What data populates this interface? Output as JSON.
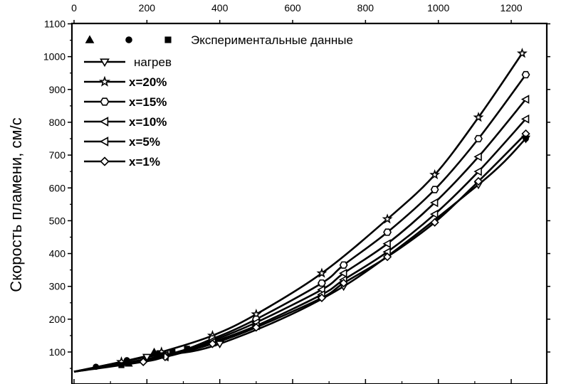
{
  "chart_data": {
    "type": "line",
    "title": "",
    "xlabel": "",
    "ylabel": "Скорость пламени, см/с",
    "xlim": [
      0,
      1300
    ],
    "ylim": [
      30,
      1100
    ],
    "x_ticks": [
      0,
      200,
      400,
      600,
      800,
      1000,
      1200
    ],
    "y_ticks": [
      100,
      200,
      300,
      400,
      500,
      600,
      700,
      800,
      900,
      1000,
      1100
    ],
    "x_axis_position": "top",
    "grid": false,
    "legend_position": "top-left",
    "legend": {
      "experimental_label": "Экспериментальные данные",
      "experimental_markers": [
        "triangle",
        "circle",
        "square"
      ]
    },
    "series": [
      {
        "name": "нагрев",
        "marker": "triangle-down",
        "x": [
          0,
          200,
          400,
          740,
          1110,
          1240
        ],
        "y": [
          40,
          85,
          125,
          300,
          610,
          750
        ]
      },
      {
        "name": "x=20%",
        "marker": "star",
        "x": [
          0,
          130,
          240,
          380,
          500,
          680,
          860,
          990,
          1110,
          1230
        ],
        "y": [
          40,
          70,
          100,
          150,
          215,
          340,
          505,
          640,
          815,
          1010
        ]
      },
      {
        "name": "x=15%",
        "marker": "hexagon",
        "x": [
          0,
          250,
          380,
          500,
          680,
          740,
          860,
          990,
          1110,
          1240
        ],
        "y": [
          40,
          90,
          140,
          200,
          310,
          365,
          465,
          595,
          750,
          945
        ]
      },
      {
        "name": "x=10%",
        "marker": "triangle-left",
        "x": [
          0,
          250,
          380,
          500,
          680,
          740,
          860,
          990,
          1110,
          1240
        ],
        "y": [
          40,
          90,
          135,
          190,
          290,
          340,
          430,
          555,
          695,
          870
        ]
      },
      {
        "name": "x=5%",
        "marker": "triangle-left",
        "x": [
          0,
          250,
          380,
          500,
          680,
          740,
          860,
          990,
          1110,
          1240
        ],
        "y": [
          40,
          85,
          130,
          180,
          275,
          320,
          405,
          520,
          650,
          810
        ]
      },
      {
        "name": "x=1%",
        "marker": "diamond",
        "x": [
          0,
          190,
          250,
          380,
          500,
          680,
          740,
          860,
          990,
          1110,
          1240
        ],
        "y": [
          40,
          70,
          85,
          125,
          175,
          265,
          310,
          390,
          495,
          620,
          765
        ]
      }
    ],
    "experimental": [
      {
        "marker": "triangle",
        "x": [
          150,
          220
        ],
        "y": [
          65,
          100
        ]
      },
      {
        "marker": "circle",
        "x": [
          60,
          145,
          230,
          270,
          1240
        ],
        "y": [
          55,
          75,
          95,
          100,
          750
        ]
      },
      {
        "marker": "square",
        "x": [
          130,
          240,
          270,
          310
        ],
        "y": [
          60,
          90,
          100,
          110
        ]
      }
    ]
  }
}
